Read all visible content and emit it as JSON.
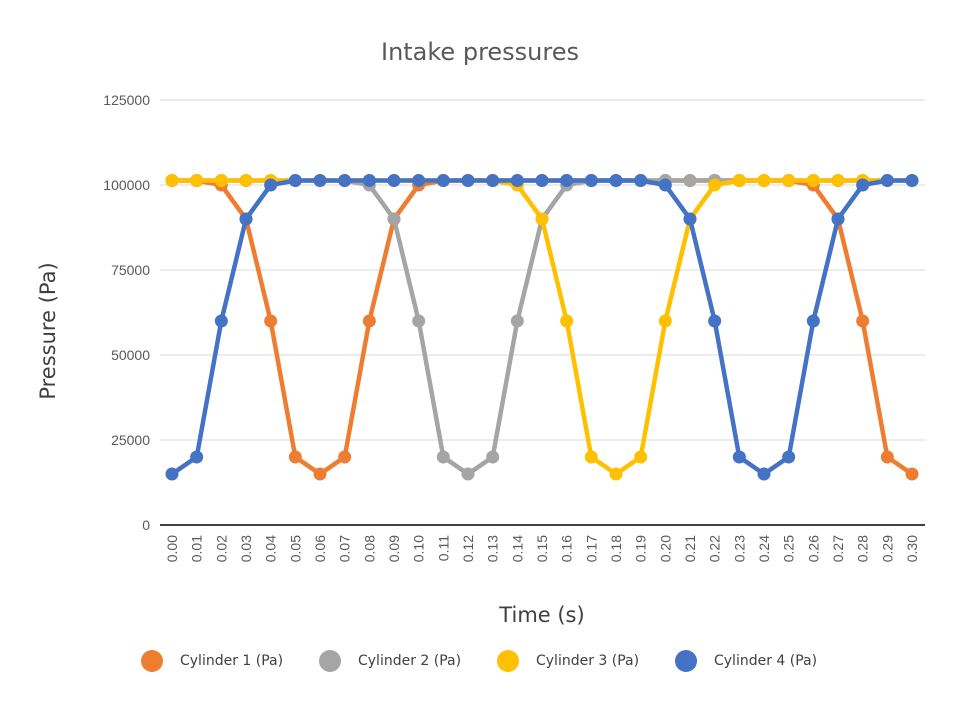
{
  "chart_data": {
    "type": "line",
    "title": "Intake pressures",
    "xlabel": "Time (s)",
    "ylabel": "Pressure (Pa)",
    "ylim": [
      0,
      125000
    ],
    "yticks": [
      "0",
      "25000",
      "50000",
      "75000",
      "100000",
      "125000"
    ],
    "grid": true,
    "legend_position": "bottom",
    "categories": [
      "0.00",
      "0.01",
      "0.02",
      "0.03",
      "0.04",
      "0.05",
      "0.06",
      "0.07",
      "0.08",
      "0.09",
      "0.10",
      "0.11",
      "0.12",
      "0.13",
      "0.14",
      "0.15",
      "0.16",
      "0.17",
      "0.18",
      "0.19",
      "0.20",
      "0.21",
      "0.22",
      "0.23",
      "0.24",
      "0.25",
      "0.26",
      "0.27",
      "0.28",
      "0.29",
      "0.30"
    ],
    "series": [
      {
        "name": "Cylinder 1 (Pa)",
        "color": "#ED7D31",
        "values": [
          101325,
          101325,
          100000,
          90000,
          60000,
          20000,
          15000,
          20000,
          60000,
          90000,
          100000,
          101325,
          101325,
          101325,
          101325,
          101325,
          101325,
          101325,
          101325,
          101325,
          101325,
          101325,
          101325,
          101325,
          101325,
          101325,
          100000,
          90000,
          60000,
          20000,
          15000
        ]
      },
      {
        "name": "Cylinder 2 (Pa)",
        "color": "#A5A5A5",
        "values": [
          101325,
          101325,
          101325,
          101325,
          101325,
          101325,
          101325,
          101325,
          100000,
          90000,
          60000,
          20000,
          15000,
          20000,
          60000,
          90000,
          100000,
          101325,
          101325,
          101325,
          101325,
          101325,
          101325,
          101325,
          101325,
          101325,
          101325,
          101325,
          101325,
          101325,
          101325
        ]
      },
      {
        "name": "Cylinder 3 (Pa)",
        "color": "#FFC000",
        "values": [
          101325,
          101325,
          101325,
          101325,
          101325,
          101325,
          101325,
          101325,
          101325,
          101325,
          101325,
          101325,
          101325,
          101325,
          100000,
          90000,
          60000,
          20000,
          15000,
          20000,
          60000,
          90000,
          100000,
          101325,
          101325,
          101325,
          101325,
          101325,
          101325,
          101325,
          101325
        ]
      },
      {
        "name": "Cylinder 4 (Pa)",
        "color": "#4472C4",
        "values": [
          15000,
          20000,
          60000,
          90000,
          100000,
          101325,
          101325,
          101325,
          101325,
          101325,
          101325,
          101325,
          101325,
          101325,
          101325,
          101325,
          101325,
          101325,
          101325,
          101325,
          100000,
          90000,
          60000,
          20000,
          15000,
          20000,
          60000,
          90000,
          100000,
          101325,
          101325
        ]
      }
    ]
  }
}
